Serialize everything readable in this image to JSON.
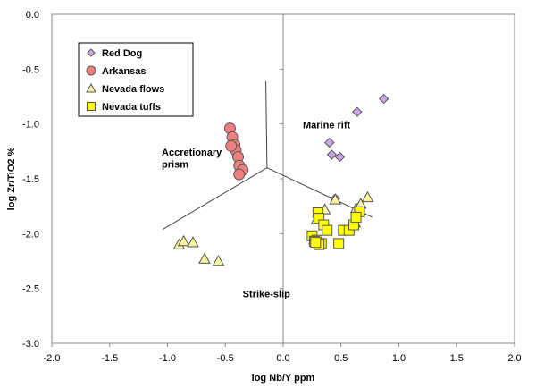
{
  "chart_data": {
    "type": "scatter",
    "xlabel": "log Nb/Y ppm",
    "ylabel": "log Zr/TiO2 %",
    "xlim": [
      -2.0,
      2.0
    ],
    "ylim": [
      -3.0,
      0.0
    ],
    "x_ticks": [
      "-2.0",
      "-1.5",
      "-1.0",
      "-0.5",
      "0.0",
      "0.5",
      "1.0",
      "1.5",
      "2.0"
    ],
    "y_ticks": [
      "0.0",
      "-0.5",
      "-1.0",
      "-1.5",
      "-2.0",
      "-2.5",
      "-3.0"
    ],
    "legend_position": "top-left",
    "regions": [
      {
        "label": "Accretionary",
        "x": -1.05,
        "y": -1.29
      },
      {
        "label": "prism",
        "x": -1.05,
        "y": -1.4
      },
      {
        "label": "Marine rift",
        "x": 0.17,
        "y": -1.04
      },
      {
        "label": "Strike-slip",
        "x": -0.35,
        "y": -2.58
      }
    ],
    "boundaries": [
      {
        "x": [
          -1.04,
          -0.14
        ],
        "y": [
          -1.96,
          -1.4
        ]
      },
      {
        "x": [
          -0.14,
          -0.15
        ],
        "y": [
          -1.4,
          -0.61
        ]
      },
      {
        "x": [
          -0.14,
          0.77
        ],
        "y": [
          -1.4,
          -1.85
        ]
      }
    ],
    "series": [
      {
        "name": "Red Dog",
        "marker": "diamond",
        "color": "#c9a7e8",
        "x": [
          0.87,
          0.64,
          0.4,
          0.42,
          0.49,
          0.45
        ],
        "y": [
          -0.77,
          -0.89,
          -1.17,
          -1.28,
          -1.3,
          -1.68
        ]
      },
      {
        "name": "Arkansas",
        "marker": "circle",
        "color": "#f07f7f",
        "x": [
          -0.46,
          -0.44,
          -0.42,
          -0.41,
          -0.45,
          -0.39,
          -0.38,
          -0.35,
          -0.38
        ],
        "y": [
          -1.04,
          -1.12,
          -1.19,
          -1.24,
          -1.2,
          -1.3,
          -1.38,
          -1.42,
          -1.46
        ]
      },
      {
        "name": "Nevada flows",
        "marker": "triangle",
        "color": "#f5f5a0",
        "x": [
          -0.9,
          -0.86,
          -0.78,
          -0.68,
          -0.56,
          0.45,
          0.36,
          0.63,
          0.67,
          0.73,
          0.29,
          0.62,
          0.27,
          0.31
        ],
        "y": [
          -2.1,
          -2.07,
          -2.08,
          -2.23,
          -2.25,
          -1.69,
          -1.78,
          -1.77,
          -1.73,
          -1.67,
          -1.87,
          -1.9,
          -2.05,
          -2.1
        ]
      },
      {
        "name": "Nevada tuffs",
        "marker": "square",
        "color": "#ffff00",
        "x": [
          0.3,
          0.31,
          0.35,
          0.25,
          0.29,
          0.38,
          0.52,
          0.57,
          0.61,
          0.66,
          0.63,
          0.48,
          0.27,
          0.33,
          0.31,
          0.28
        ],
        "y": [
          -1.81,
          -1.86,
          -1.92,
          -2.02,
          -2.06,
          -1.97,
          -1.97,
          -1.97,
          -1.92,
          -1.8,
          -1.85,
          -2.09,
          -2.07,
          -2.09,
          -2.1,
          -2.08
        ]
      }
    ]
  }
}
